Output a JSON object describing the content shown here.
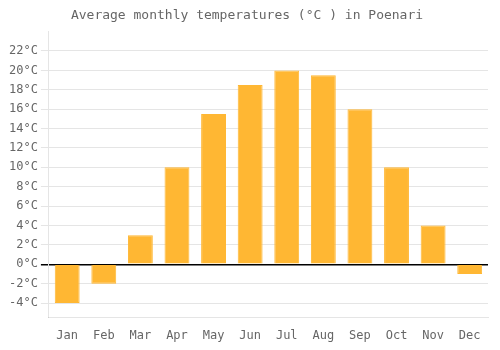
{
  "chart_data": {
    "type": "bar",
    "title": "Average monthly temperatures (°C ) in Poenari",
    "categories": [
      "Jan",
      "Feb",
      "Mar",
      "Apr",
      "May",
      "Jun",
      "Jul",
      "Aug",
      "Sep",
      "Oct",
      "Nov",
      "Dec"
    ],
    "values": [
      -4,
      -2,
      3,
      10,
      15.5,
      18.5,
      20,
      19.5,
      16,
      10,
      4,
      -1
    ],
    "color": "#FFB733",
    "ylim": [
      -5.5,
      24
    ],
    "yticks": [
      {
        "value": -4,
        "label": "-4°C"
      },
      {
        "value": -2,
        "label": "-2°C"
      },
      {
        "value": 0,
        "label": "0°C"
      },
      {
        "value": 2,
        "label": "2°C"
      },
      {
        "value": 4,
        "label": "4°C"
      },
      {
        "value": 6,
        "label": "6°C"
      },
      {
        "value": 8,
        "label": "8°C"
      },
      {
        "value": 10,
        "label": "10°C"
      },
      {
        "value": 12,
        "label": "12°C"
      },
      {
        "value": 14,
        "label": "14°C"
      },
      {
        "value": 16,
        "label": "16°C"
      },
      {
        "value": 18,
        "label": "18°C"
      },
      {
        "value": 20,
        "label": "20°C"
      },
      {
        "value": 22,
        "label": "22°C"
      }
    ],
    "grid": true
  }
}
